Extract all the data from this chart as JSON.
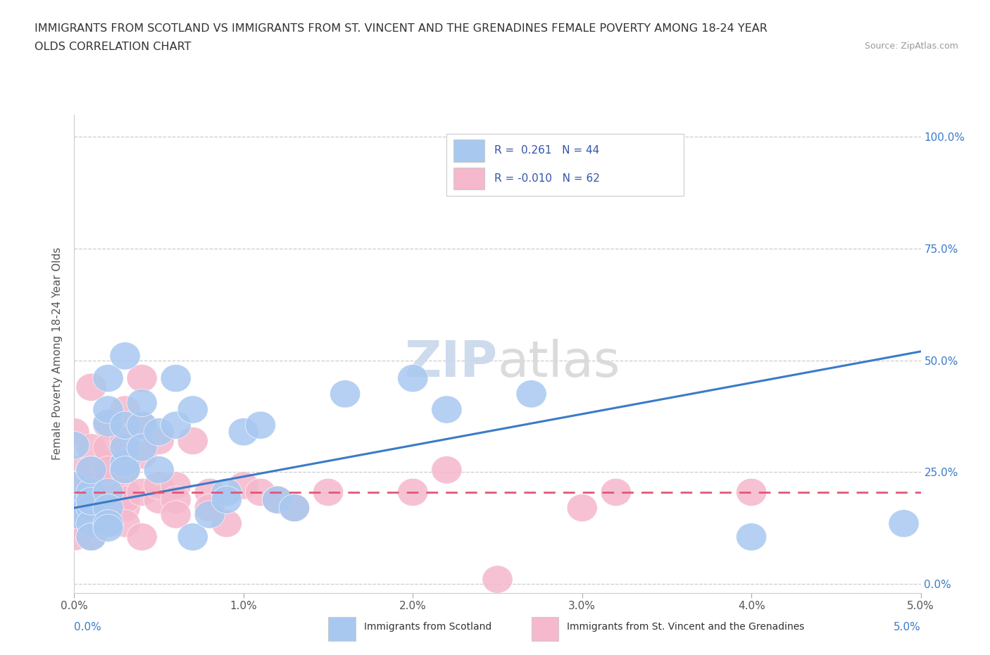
{
  "title_line1": "IMMIGRANTS FROM SCOTLAND VS IMMIGRANTS FROM ST. VINCENT AND THE GRENADINES FEMALE POVERTY AMONG 18-24 YEAR",
  "title_line2": "OLDS CORRELATION CHART",
  "source_text": "Source: ZipAtlas.com",
  "ylabel": "Female Poverty Among 18-24 Year Olds",
  "xlim": [
    0.0,
    0.05
  ],
  "ylim": [
    -0.02,
    1.05
  ],
  "xticks": [
    0.0,
    0.01,
    0.02,
    0.03,
    0.04,
    0.05
  ],
  "xticklabels": [
    "0.0%",
    "1.0%",
    "2.0%",
    "3.0%",
    "4.0%",
    "5.0%"
  ],
  "ytick_positions": [
    0.0,
    0.25,
    0.5,
    0.75,
    1.0
  ],
  "ytick_labels_right": [
    "0.0%",
    "25.0%",
    "50.0%",
    "75.0%",
    "100.0%"
  ],
  "scotland_color": "#a8c8f0",
  "stv_color": "#f5b8cc",
  "line_scotland_color": "#3a7bc8",
  "line_stv_color": "#e05878",
  "scotland_scatter": [
    [
      0.0,
      0.22
    ],
    [
      0.0,
      0.17
    ],
    [
      0.0,
      0.155
    ],
    [
      0.0,
      0.31
    ],
    [
      0.001,
      0.205
    ],
    [
      0.001,
      0.17
    ],
    [
      0.001,
      0.135
    ],
    [
      0.001,
      0.255
    ],
    [
      0.001,
      0.185
    ],
    [
      0.001,
      0.105
    ],
    [
      0.002,
      0.205
    ],
    [
      0.002,
      0.36
    ],
    [
      0.002,
      0.17
    ],
    [
      0.002,
      0.135
    ],
    [
      0.002,
      0.125
    ],
    [
      0.002,
      0.46
    ],
    [
      0.002,
      0.39
    ],
    [
      0.003,
      0.27
    ],
    [
      0.003,
      0.305
    ],
    [
      0.003,
      0.51
    ],
    [
      0.003,
      0.355
    ],
    [
      0.003,
      0.255
    ],
    [
      0.004,
      0.355
    ],
    [
      0.004,
      0.305
    ],
    [
      0.004,
      0.405
    ],
    [
      0.005,
      0.34
    ],
    [
      0.005,
      0.255
    ],
    [
      0.006,
      0.46
    ],
    [
      0.006,
      0.355
    ],
    [
      0.007,
      0.39
    ],
    [
      0.007,
      0.105
    ],
    [
      0.008,
      0.155
    ],
    [
      0.009,
      0.205
    ],
    [
      0.009,
      0.188
    ],
    [
      0.01,
      0.34
    ],
    [
      0.011,
      0.355
    ],
    [
      0.012,
      0.188
    ],
    [
      0.013,
      0.17
    ],
    [
      0.016,
      0.425
    ],
    [
      0.02,
      0.46
    ],
    [
      0.022,
      0.39
    ],
    [
      0.027,
      0.425
    ],
    [
      0.04,
      0.105
    ],
    [
      0.049,
      0.135
    ]
  ],
  "stv_scatter": [
    [
      0.0,
      0.34
    ],
    [
      0.0,
      0.17
    ],
    [
      0.0,
      0.22
    ],
    [
      0.0,
      0.188
    ],
    [
      0.0,
      0.205
    ],
    [
      0.0,
      0.155
    ],
    [
      0.0,
      0.135
    ],
    [
      0.0,
      0.105
    ],
    [
      0.0,
      0.255
    ],
    [
      0.0,
      0.22
    ],
    [
      0.001,
      0.44
    ],
    [
      0.001,
      0.305
    ],
    [
      0.001,
      0.205
    ],
    [
      0.001,
      0.17
    ],
    [
      0.001,
      0.135
    ],
    [
      0.001,
      0.255
    ],
    [
      0.001,
      0.188
    ],
    [
      0.001,
      0.22
    ],
    [
      0.001,
      0.155
    ],
    [
      0.001,
      0.105
    ],
    [
      0.002,
      0.355
    ],
    [
      0.002,
      0.27
    ],
    [
      0.002,
      0.205
    ],
    [
      0.002,
      0.17
    ],
    [
      0.002,
      0.135
    ],
    [
      0.002,
      0.188
    ],
    [
      0.002,
      0.22
    ],
    [
      0.002,
      0.305
    ],
    [
      0.002,
      0.255
    ],
    [
      0.003,
      0.39
    ],
    [
      0.003,
      0.32
    ],
    [
      0.003,
      0.205
    ],
    [
      0.003,
      0.17
    ],
    [
      0.003,
      0.188
    ],
    [
      0.003,
      0.255
    ],
    [
      0.003,
      0.135
    ],
    [
      0.004,
      0.355
    ],
    [
      0.004,
      0.288
    ],
    [
      0.004,
      0.205
    ],
    [
      0.004,
      0.105
    ],
    [
      0.004,
      0.46
    ],
    [
      0.005,
      0.32
    ],
    [
      0.005,
      0.188
    ],
    [
      0.005,
      0.22
    ],
    [
      0.006,
      0.22
    ],
    [
      0.006,
      0.188
    ],
    [
      0.006,
      0.155
    ],
    [
      0.007,
      0.32
    ],
    [
      0.008,
      0.205
    ],
    [
      0.008,
      0.17
    ],
    [
      0.009,
      0.135
    ],
    [
      0.01,
      0.22
    ],
    [
      0.011,
      0.205
    ],
    [
      0.012,
      0.188
    ],
    [
      0.013,
      0.17
    ],
    [
      0.015,
      0.205
    ],
    [
      0.02,
      0.205
    ],
    [
      0.022,
      0.255
    ],
    [
      0.025,
      0.01
    ],
    [
      0.03,
      0.17
    ],
    [
      0.032,
      0.205
    ],
    [
      0.04,
      0.205
    ]
  ],
  "sc_line": [
    0.17,
    0.52
  ],
  "stv_line": [
    0.205,
    0.205
  ]
}
